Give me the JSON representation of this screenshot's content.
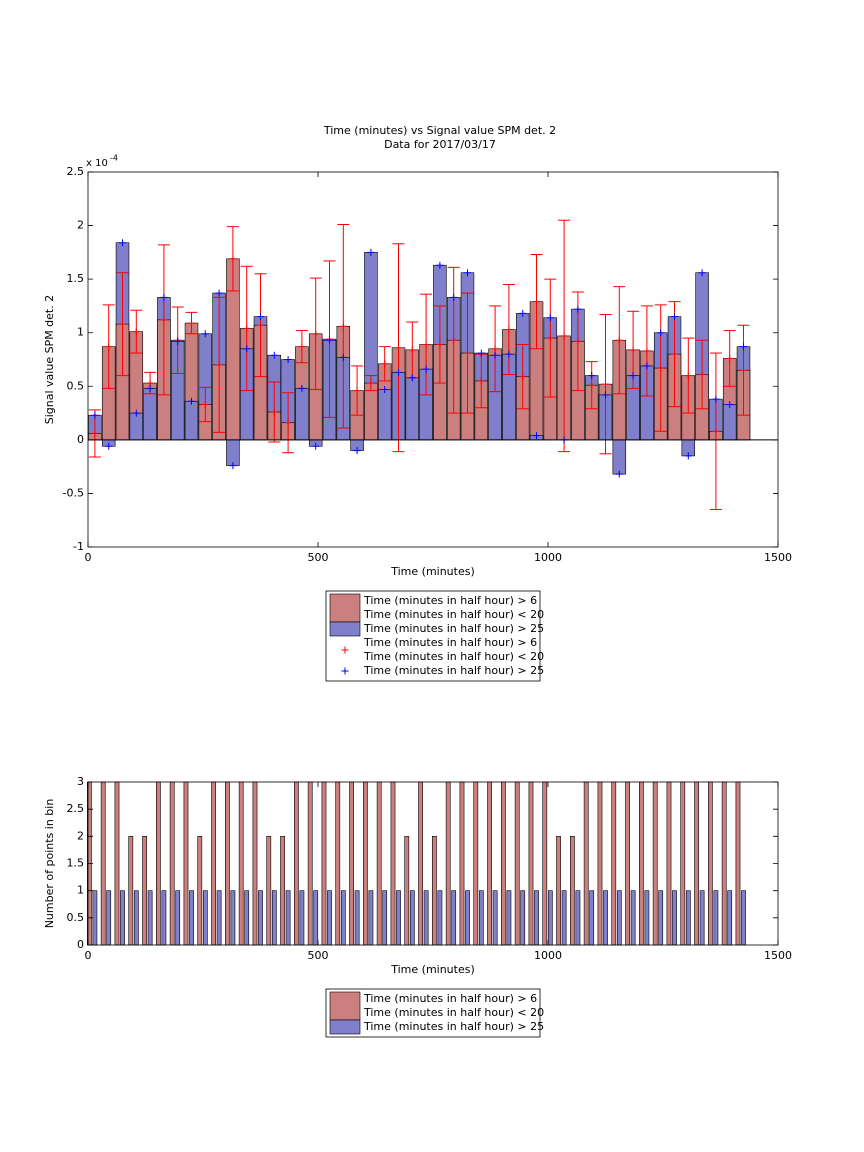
{
  "chart_data": [
    {
      "type": "bar",
      "title": "Time (minutes) vs Signal value SPM det. 2",
      "subtitle": "Data for 2017/03/17",
      "x_label": "Time (minutes)",
      "y_label": "Signal value SPM det. 2",
      "y_multiplier": "x 10",
      "y_multiplier_exponent": "-4",
      "xlim": [
        0,
        1500
      ],
      "xticks": [
        0,
        500,
        1000,
        1500
      ],
      "ylim": [
        -1,
        2.5
      ],
      "yticks": [
        -1,
        -0.5,
        0,
        0.5,
        1,
        1.5,
        2,
        2.5
      ],
      "legend": "below",
      "x": [
        15,
        45,
        75,
        105,
        135,
        165,
        195,
        225,
        255,
        285,
        315,
        345,
        375,
        405,
        435,
        465,
        495,
        525,
        555,
        585,
        615,
        645,
        675,
        705,
        735,
        765,
        795,
        825,
        855,
        885,
        915,
        945,
        975,
        1005,
        1035,
        1065,
        1095,
        1125,
        1155,
        1185,
        1215,
        1245,
        1275,
        1305,
        1335,
        1365,
        1395,
        1425
      ],
      "series": [
        {
          "name": "Time (minutes in half hour) > 6\nTime (minutes in half hour) < 20",
          "kind": "bar",
          "color": "#cc7f7f",
          "error_color": "#ff0000",
          "values": [
            0.06,
            0.87,
            1.08,
            1.01,
            0.53,
            1.12,
            0.93,
            1.09,
            0.33,
            0.7,
            1.69,
            1.04,
            1.07,
            0.26,
            0.16,
            0.87,
            0.99,
            0.94,
            1.06,
            0.46,
            0.53,
            0.71,
            0.86,
            0.84,
            0.89,
            0.89,
            0.93,
            0.81,
            0.55,
            0.85,
            1.03,
            0.59,
            1.29,
            0.95,
            0.97,
            0.92,
            0.51,
            0.52,
            0.93,
            0.84,
            0.83,
            0.67,
            0.8,
            0.6,
            0.61,
            0.08,
            0.76,
            0.65
          ],
          "errors": [
            0.22,
            0.39,
            0.48,
            0.2,
            0.1,
            0.7,
            0.31,
            0.1,
            0.16,
            0.63,
            0.3,
            0.58,
            0.48,
            0.28,
            0.28,
            0.15,
            0.52,
            0.73,
            0.95,
            0.23,
            0.07,
            0.16,
            0.97,
            0.26,
            0.47,
            0.36,
            0.68,
            0.56,
            0.25,
            0.4,
            0.42,
            0.3,
            0.44,
            0.55,
            1.08,
            0.46,
            0.22,
            0.65,
            0.5,
            0.36,
            0.42,
            0.59,
            0.49,
            0.35,
            0.32,
            0.73,
            0.26,
            0.42
          ]
        },
        {
          "name": "Time (minutes in half hour) > 25",
          "kind": "bar",
          "color": "#7f7fcc",
          "values": [
            0.23,
            -0.06,
            1.84,
            0.25,
            0.48,
            1.33,
            0.92,
            0.36,
            0.99,
            1.37,
            -0.24,
            0.85,
            1.15,
            0.79,
            0.75,
            0.48,
            -0.06,
            0.93,
            0.77,
            -0.1,
            1.75,
            0.47,
            0.63,
            0.58,
            0.66,
            1.63,
            1.33,
            1.56,
            0.81,
            0.79,
            0.8,
            1.18,
            0.04,
            1.14,
            0,
            1.22,
            0.6,
            0.42,
            -0.32,
            0.6,
            0.69,
            1.0,
            1.15,
            -0.15,
            1.56,
            0.38,
            0.33,
            0.87
          ]
        },
        {
          "name": "Time (minutes in half hour) > 6\nTime (minutes in half hour) < 20",
          "kind": "marker",
          "color": "#ff0000",
          "values": [
            0.06,
            0.87,
            1.08,
            1.01,
            0.53,
            1.12,
            0.93,
            1.09,
            0.33,
            0.7,
            1.69,
            1.04,
            1.07,
            0.26,
            0.16,
            0.87,
            0.99,
            0.94,
            1.06,
            0.46,
            0.53,
            0.71,
            0.86,
            0.84,
            0.89,
            0.89,
            0.93,
            0.81,
            0.55,
            0.85,
            1.03,
            0.59,
            1.29,
            0.95,
            0.97,
            0.92,
            0.51,
            0.52,
            0.93,
            0.84,
            0.83,
            0.67,
            0.8,
            0.6,
            0.61,
            0.08,
            0.76,
            0.65
          ]
        },
        {
          "name": "Time (minutes in half hour) > 25",
          "kind": "marker",
          "color": "#0000ff",
          "values": [
            0.23,
            -0.06,
            1.84,
            0.25,
            0.48,
            1.33,
            0.92,
            0.36,
            0.99,
            1.37,
            -0.24,
            0.85,
            1.15,
            0.79,
            0.75,
            0.48,
            -0.06,
            0.93,
            0.77,
            -0.1,
            1.75,
            0.47,
            0.63,
            0.58,
            0.66,
            1.63,
            1.33,
            1.56,
            0.81,
            0.79,
            0.8,
            1.18,
            0.04,
            1.14,
            0,
            1.22,
            0.6,
            0.42,
            -0.32,
            0.6,
            0.69,
            1.0,
            1.15,
            -0.15,
            1.56,
            0.38,
            0.33,
            0.87
          ]
        }
      ]
    },
    {
      "type": "bar",
      "x_label": "Time (minutes)",
      "y_label": "Number of points in bin",
      "xlim": [
        0,
        1500
      ],
      "xticks": [
        0,
        500,
        1000,
        1500
      ],
      "ylim": [
        0,
        3
      ],
      "yticks": [
        0,
        0.5,
        1,
        1.5,
        2,
        2.5,
        3
      ],
      "legend": "below",
      "series": [
        {
          "name": "Time (minutes in half hour) > 6\nTime (minutes in half hour) < 20",
          "kind": "bar",
          "color": "#cc7f7f",
          "x": [
            3,
            33,
            63,
            93,
            123,
            153,
            183,
            213,
            243,
            273,
            303,
            333,
            363,
            393,
            423,
            453,
            483,
            513,
            543,
            573,
            603,
            633,
            663,
            693,
            723,
            753,
            783,
            813,
            843,
            873,
            903,
            933,
            963,
            993,
            1023,
            1053,
            1083,
            1113,
            1143,
            1173,
            1203,
            1233,
            1263,
            1293,
            1323,
            1353,
            1383,
            1413
          ],
          "values": [
            3,
            3,
            3,
            2,
            2,
            3,
            3,
            3,
            2,
            3,
            3,
            3,
            3,
            2,
            2,
            3,
            3,
            3,
            3,
            3,
            3,
            3,
            3,
            2,
            3,
            2,
            3,
            3,
            3,
            3,
            3,
            3,
            3,
            3,
            2,
            2,
            3,
            3,
            3,
            3,
            3,
            3,
            3,
            3,
            3,
            3,
            3,
            3
          ]
        },
        {
          "name": "Time (minutes in half hour) > 25",
          "kind": "bar",
          "color": "#7f7fcc",
          "x": [
            15,
            45,
            75,
            105,
            135,
            165,
            195,
            225,
            255,
            285,
            315,
            345,
            375,
            405,
            435,
            465,
            495,
            525,
            555,
            585,
            615,
            645,
            675,
            705,
            735,
            765,
            795,
            825,
            855,
            885,
            915,
            945,
            975,
            1005,
            1035,
            1065,
            1095,
            1125,
            1155,
            1185,
            1215,
            1245,
            1275,
            1305,
            1335,
            1365,
            1395,
            1425
          ],
          "values": [
            1,
            1,
            1,
            1,
            1,
            1,
            1,
            1,
            1,
            1,
            1,
            1,
            1,
            1,
            1,
            1,
            1,
            1,
            1,
            1,
            1,
            1,
            1,
            1,
            1,
            1,
            1,
            1,
            1,
            1,
            1,
            1,
            1,
            1,
            1,
            1,
            1,
            1,
            1,
            1,
            1,
            1,
            1,
            1,
            1,
            1,
            1,
            1
          ]
        }
      ]
    }
  ]
}
